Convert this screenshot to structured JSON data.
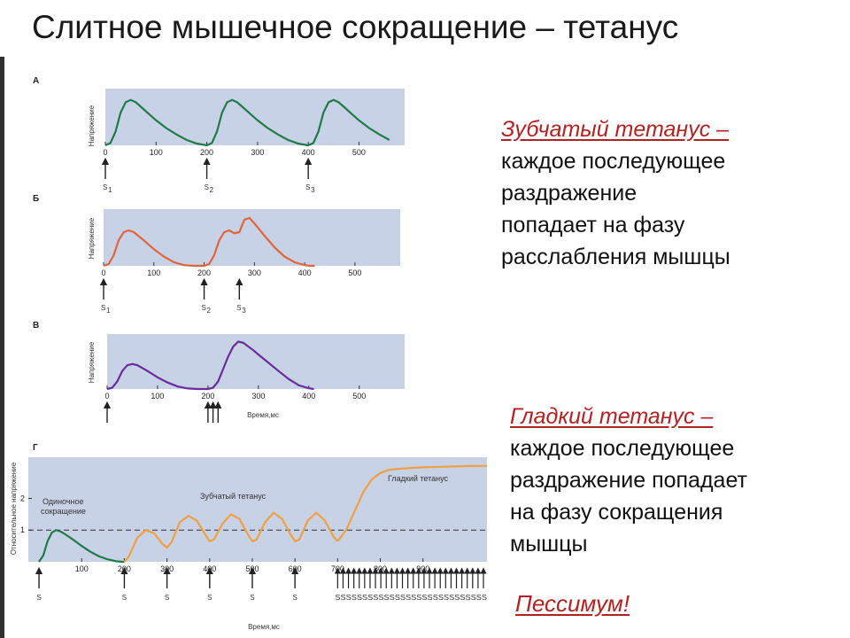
{
  "slide": {
    "title": "Слитное мышечное сокращение – тетанус"
  },
  "colors": {
    "plot_bg": "#c8d2e6",
    "green": "#1f7a48",
    "red": "#e0643c",
    "purple": "#6a2c9c",
    "orange": "#f0a040",
    "accent_text": "#b22222"
  },
  "panels": {
    "A": {
      "letter": "А",
      "ylabel": "Напряжение",
      "stim_labels": [
        "S",
        "S",
        "S"
      ],
      "stim_subs": [
        "1",
        "2",
        "3"
      ]
    },
    "B": {
      "letter": "Б",
      "ylabel": "Напряжение",
      "stim_labels": [
        "S",
        "S",
        "S"
      ],
      "stim_subs": [
        "1",
        "2",
        "3"
      ]
    },
    "C": {
      "letter": "В",
      "ylabel": "Напряжение",
      "xlabel": "Время,мс"
    },
    "D": {
      "letter": "Г",
      "ylabel": "Относительное напряжение",
      "xlabel": "Время,мс",
      "annotations": {
        "single_line1": "Одиночное",
        "single_line2": "сокращение",
        "serrated": "Зубчатый тетанус",
        "smooth": "Гладкий тетанус"
      },
      "stim_label": "S",
      "stim_tail_label": "SSSSSSSSSSSSSSSSSSSSSSSSSSSS"
    }
  },
  "chart_data": [
    {
      "type": "line",
      "panel": "А",
      "ylabel": "Напряжение",
      "xticks": [
        0,
        100,
        200,
        300,
        400,
        500
      ],
      "xlim": [
        0,
        590
      ],
      "stimuli": [
        0,
        200,
        400
      ],
      "series": [
        {
          "x": [
            0,
            10,
            20,
            30,
            40,
            50,
            60,
            70,
            85,
            100,
            120,
            140,
            160,
            180,
            195,
            200,
            210,
            220,
            230,
            240,
            250,
            260,
            270,
            285,
            300,
            320,
            340,
            360,
            380,
            395,
            400,
            410,
            420,
            430,
            440,
            450,
            460,
            470,
            485,
            500,
            520,
            540,
            560
          ],
          "y": [
            0,
            0.05,
            0.3,
            0.72,
            0.95,
            1.0,
            0.95,
            0.85,
            0.7,
            0.55,
            0.38,
            0.24,
            0.12,
            0.04,
            0.01,
            0,
            0.05,
            0.3,
            0.72,
            0.95,
            1.0,
            0.95,
            0.85,
            0.7,
            0.55,
            0.38,
            0.24,
            0.12,
            0.04,
            0.01,
            0,
            0.05,
            0.3,
            0.72,
            0.95,
            1.0,
            0.95,
            0.85,
            0.7,
            0.55,
            0.38,
            0.24,
            0.12
          ]
        }
      ]
    },
    {
      "type": "line",
      "panel": "Б",
      "ylabel": "Напряжение",
      "xticks": [
        0,
        100,
        200,
        300,
        400,
        500
      ],
      "xlim": [
        0,
        590
      ],
      "stimuli": [
        0,
        200,
        270
      ],
      "series": [
        {
          "x": [
            0,
            10,
            20,
            30,
            40,
            50,
            60,
            80,
            100,
            120,
            140,
            160,
            180,
            200,
            210,
            220,
            230,
            240,
            250,
            260,
            270,
            280,
            290,
            300,
            320,
            340,
            360,
            380,
            400,
            410,
            420
          ],
          "y": [
            0,
            0.05,
            0.3,
            0.72,
            0.95,
            1.0,
            0.95,
            0.72,
            0.47,
            0.26,
            0.1,
            0.02,
            0,
            0,
            0.05,
            0.3,
            0.72,
            0.95,
            1.0,
            0.92,
            0.95,
            1.3,
            1.35,
            1.2,
            0.85,
            0.52,
            0.26,
            0.1,
            0.02,
            0,
            0
          ]
        }
      ]
    },
    {
      "type": "line",
      "panel": "В",
      "ylabel": "Напряжение",
      "xlabel": "Время,мс",
      "xticks": [
        0,
        100,
        200,
        300,
        400,
        500
      ],
      "xlim": [
        0,
        590
      ],
      "stimuli": [
        0,
        200,
        210,
        220
      ],
      "series": [
        {
          "x": [
            0,
            10,
            20,
            30,
            40,
            50,
            60,
            80,
            100,
            120,
            140,
            160,
            180,
            200,
            210,
            220,
            230,
            240,
            250,
            260,
            270,
            280,
            290,
            300,
            320,
            340,
            360,
            380,
            400,
            410
          ],
          "y": [
            0,
            0.05,
            0.3,
            0.72,
            0.95,
            1.0,
            0.95,
            0.72,
            0.47,
            0.26,
            0.1,
            0.02,
            0,
            0,
            0.05,
            0.3,
            0.8,
            1.3,
            1.7,
            1.9,
            1.85,
            1.7,
            1.55,
            1.38,
            1.05,
            0.72,
            0.4,
            0.15,
            0.03,
            0
          ]
        }
      ]
    },
    {
      "type": "line",
      "panel": "Г",
      "ylabel": "Относительное напряжение",
      "xlabel": "Время,мс",
      "xticks": [
        100,
        200,
        300,
        400,
        500,
        600,
        700,
        800,
        900
      ],
      "yticks": [
        1,
        2
      ],
      "xlim": [
        -25,
        1050
      ],
      "ylim": [
        0,
        3.3
      ],
      "reference_line_y": 1,
      "stimuli": [
        0,
        200,
        300,
        400,
        500,
        600
      ],
      "stimuli_tail_start": 700,
      "stimuli_tail_count": 28,
      "series": [
        {
          "name": "Одиночное сокращение",
          "x": [
            0,
            10,
            20,
            30,
            40,
            50,
            60,
            80,
            100,
            120,
            140,
            160,
            180,
            195,
            200
          ],
          "y": [
            0,
            0.2,
            0.65,
            0.92,
            1.0,
            0.96,
            0.88,
            0.7,
            0.5,
            0.32,
            0.18,
            0.08,
            0.02,
            0,
            0
          ]
        },
        {
          "name": "Зубчатый тетанус",
          "x": [
            200,
            210,
            230,
            250,
            270,
            290,
            300,
            310,
            330,
            350,
            370,
            390,
            400,
            410,
            430,
            450,
            470,
            490,
            500,
            510,
            530,
            550,
            570,
            590,
            600,
            610,
            630,
            650,
            670,
            690,
            700
          ],
          "y": [
            0,
            0.15,
            0.75,
            1.0,
            0.9,
            0.55,
            0.45,
            0.6,
            1.25,
            1.45,
            1.3,
            0.85,
            0.65,
            0.7,
            1.2,
            1.5,
            1.35,
            0.85,
            0.65,
            0.7,
            1.25,
            1.55,
            1.35,
            0.85,
            0.65,
            0.7,
            1.3,
            1.55,
            1.3,
            0.8,
            0.65
          ]
        },
        {
          "name": "Гладкий тетанус",
          "x": [
            700,
            720,
            740,
            760,
            780,
            800,
            820,
            840,
            870,
            900,
            950,
            1000,
            1050
          ],
          "y": [
            0.65,
            1.0,
            1.6,
            2.2,
            2.6,
            2.8,
            2.9,
            2.93,
            2.96,
            2.98,
            3.0,
            3.02,
            3.03
          ]
        }
      ]
    }
  ],
  "definitions": {
    "serrated": {
      "head": "Зубчатый тетанус –",
      "lines": [
        "каждое последующее",
        "раздражение",
        "попадает на фазу",
        "расслабления мышцы"
      ]
    },
    "smooth": {
      "head": "Гладкий тетанус –",
      "lines": [
        "каждое последующее",
        "раздражение попадает",
        "на фазу сокращения",
        "мышцы"
      ]
    },
    "pessimum": "Пессимум!"
  }
}
